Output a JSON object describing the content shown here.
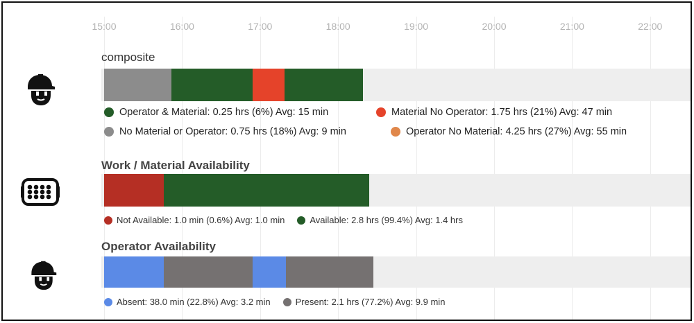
{
  "timeline": {
    "ticks": [
      "15:00",
      "16:00",
      "17:00",
      "18:00",
      "19:00",
      "20:00",
      "21:00",
      "22:00"
    ]
  },
  "composite": {
    "title": "composite",
    "icon": "worker-helmet-icon",
    "segments": [
      {
        "state": "No Material or Operator",
        "start": "15:00",
        "end": "15:52",
        "color": "#8c8c8c"
      },
      {
        "state": "Operator & Material",
        "start": "15:52",
        "end": "16:54",
        "color": "#245c28"
      },
      {
        "state": "Material No Operator",
        "start": "16:54",
        "end": "17:19",
        "color": "#e5432a"
      },
      {
        "state": "Operator & Material",
        "start": "17:19",
        "end": "18:19",
        "color": "#245c28"
      }
    ],
    "legend": [
      {
        "label": "Operator & Material:  0.25 hrs (6%) Avg: 15 min",
        "color": "#245c28"
      },
      {
        "label": "Material No Operator: 1.75 hrs (21%) Avg: 47 min",
        "color": "#e5432a"
      },
      {
        "label": "No Material or Operator: 0.75 hrs (18%) Avg: 9 min",
        "color": "#8c8c8c"
      },
      {
        "label": "Operator No Material:  4.25 hrs (27%) Avg: 55 min",
        "color": "#e0874a"
      }
    ]
  },
  "material": {
    "title": "Work / Material Availability",
    "icon": "material-tray-icon",
    "segments": [
      {
        "state": "Not Available",
        "start": "15:00",
        "end": "15:46",
        "color": "#b52f24"
      },
      {
        "state": "Available",
        "start": "15:46",
        "end": "18:24",
        "color": "#245c28"
      }
    ],
    "legend": [
      {
        "label": "Not Available: 1.0 min (0.6%) Avg: 1.0 min",
        "color": "#b52f24"
      },
      {
        "label": "Available: 2.8 hrs (99.4%) Avg: 1.4 hrs",
        "color": "#245c28"
      }
    ]
  },
  "operator": {
    "title": "Operator Availability",
    "icon": "worker-helmet-icon",
    "segments": [
      {
        "state": "Absent",
        "start": "15:00",
        "end": "15:46",
        "color": "#5b8ae6"
      },
      {
        "state": "Present",
        "start": "15:46",
        "end": "16:54",
        "color": "#757171"
      },
      {
        "state": "Absent",
        "start": "16:54",
        "end": "17:20",
        "color": "#5b8ae6"
      },
      {
        "state": "Present",
        "start": "17:20",
        "end": "18:27",
        "color": "#757171"
      }
    ],
    "legend": [
      {
        "label": "Absent: 38.0 min (22.8%) Avg: 3.2 min",
        "color": "#5b8ae6"
      },
      {
        "label": "Present: 2.1 hrs (77.2%) Avg: 9.9 min",
        "color": "#757171"
      }
    ]
  }
}
